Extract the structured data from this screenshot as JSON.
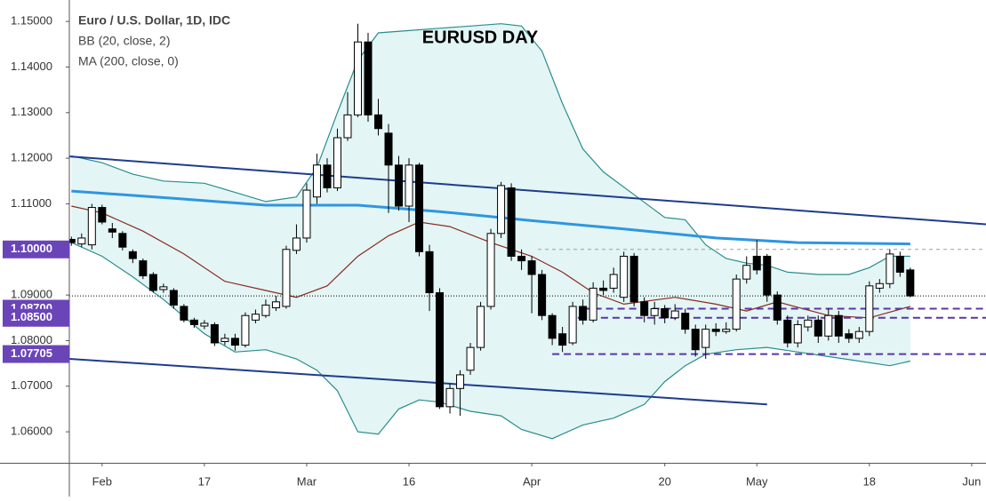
{
  "chart_data": {
    "type": "candlestick",
    "title": "EURUSD DAY",
    "symbol": "Euro / U.S. Dollar, 1D, IDC",
    "indicators": [
      "BB (20, close, 2)",
      "MA (200, close, 0)"
    ],
    "xlim": [
      -3.2,
      86.4
    ],
    "xticks": [
      {
        "value": 0,
        "label": "Feb"
      },
      {
        "value": 10,
        "label": "17"
      },
      {
        "value": 20,
        "label": "Mar"
      },
      {
        "value": 30,
        "label": "16"
      },
      {
        "value": 42,
        "label": "Apr"
      },
      {
        "value": 55,
        "label": "20"
      },
      {
        "value": 64,
        "label": "May"
      },
      {
        "value": 75,
        "label": "18"
      },
      {
        "value": 85,
        "label": "Jun"
      }
    ],
    "ylim": [
      1.0532,
      1.1547
    ],
    "yticks": [
      {
        "value": 1.15,
        "label": "1.15000"
      },
      {
        "value": 1.14,
        "label": "1.14000"
      },
      {
        "value": 1.13,
        "label": "1.13000"
      },
      {
        "value": 1.12,
        "label": "1.12000"
      },
      {
        "value": 1.11,
        "label": "1.11000"
      },
      {
        "value": 1.1,
        "label": "1.10000"
      },
      {
        "value": 1.09,
        "label": "1.09000"
      },
      {
        "value": 1.08,
        "label": "1.08000"
      },
      {
        "value": 1.07,
        "label": "1.07000"
      },
      {
        "value": 1.06,
        "label": "1.06000"
      }
    ],
    "up_color": "#ffffff",
    "down_color": "#000000",
    "x": [
      -3,
      -2,
      -1,
      0,
      1,
      2,
      3,
      4,
      5,
      6,
      7,
      8,
      9,
      10,
      11,
      12,
      13,
      14,
      15,
      16,
      17,
      18,
      19,
      20,
      21,
      22,
      23,
      24,
      25,
      26,
      27,
      28,
      29,
      30,
      31,
      32,
      33,
      34,
      35,
      36,
      37,
      38,
      39,
      40,
      41,
      42,
      43,
      44,
      45,
      46,
      47,
      48,
      49,
      50,
      51,
      52,
      53,
      54,
      55,
      56,
      57,
      58,
      59,
      60,
      61,
      62,
      63,
      64,
      65,
      66,
      67,
      68,
      69,
      70,
      71,
      72,
      73,
      74,
      75,
      76,
      77,
      78,
      79
    ],
    "open": [
      1.1022,
      1.1012,
      1.101,
      1.1092,
      1.1045,
      1.1035,
      1.0995,
      1.0975,
      1.0945,
      1.0912,
      1.091,
      1.0875,
      1.0845,
      1.0832,
      1.0835,
      1.0798,
      1.0805,
      1.079,
      1.0845,
      1.0855,
      1.0872,
      1.0875,
      1.0998,
      1.1025,
      1.1115,
      1.1185,
      1.1135,
      1.1245,
      1.1295,
      1.1455,
      1.1295,
      1.1255,
      1.1185,
      1.1095,
      1.1185,
      1.0995,
      1.0905,
      1.0655,
      1.0695,
      1.0735,
      1.0785,
      1.0875,
      1.1035,
      1.1135,
      1.0985,
      1.0975,
      1.0945,
      1.0855,
      1.0815,
      1.0795,
      1.0875,
      1.0845,
      1.0915,
      1.0915,
      1.0895,
      1.0985,
      1.0885,
      1.0855,
      1.087,
      1.085,
      1.086,
      1.0825,
      1.0785,
      1.0825,
      1.082,
      1.0825,
      1.0935,
      1.0985,
      1.0985,
      1.09,
      1.0845,
      1.0795,
      1.083,
      1.0845,
      1.081,
      1.0855,
      1.0815,
      1.0805,
      1.082,
      1.0915,
      1.0925,
      1.0985,
      1.0955
    ],
    "high": [
      1.1028,
      1.1035,
      1.11,
      1.1098,
      1.1058,
      1.104,
      1.1,
      1.098,
      1.095,
      1.0925,
      1.0915,
      1.088,
      1.085,
      1.0845,
      1.084,
      1.0815,
      1.0815,
      1.0862,
      1.0868,
      1.089,
      1.0898,
      1.1008,
      1.1055,
      1.1145,
      1.121,
      1.12,
      1.1265,
      1.1345,
      1.1495,
      1.1475,
      1.133,
      1.1275,
      1.1205,
      1.12,
      1.119,
      1.101,
      1.0915,
      1.0705,
      1.0735,
      1.0795,
      1.0885,
      1.1045,
      1.1148,
      1.1145,
      1.1,
      1.0985,
      1.0955,
      1.086,
      1.083,
      1.0885,
      1.089,
      1.0928,
      1.0932,
      1.096,
      1.0995,
      1.0992,
      1.0895,
      1.0885,
      1.0878,
      1.088,
      1.087,
      1.0835,
      1.0835,
      1.0838,
      1.084,
      1.0945,
      1.0985,
      1.102,
      1.099,
      1.0908,
      1.0855,
      1.0845,
      1.0855,
      1.0855,
      1.087,
      1.0865,
      1.0825,
      1.083,
      1.093,
      1.0935,
      1.1,
      1.0995,
      1.096
    ],
    "low": [
      1.1008,
      1.1005,
      1.1,
      1.1055,
      1.1025,
      1.0998,
      1.097,
      1.0935,
      1.0905,
      1.0905,
      1.087,
      1.084,
      1.0828,
      1.0825,
      1.0788,
      1.079,
      1.0778,
      1.0785,
      1.0838,
      1.085,
      1.0865,
      1.087,
      1.099,
      1.1015,
      1.11,
      1.1125,
      1.1128,
      1.1238,
      1.129,
      1.128,
      1.125,
      1.108,
      1.1085,
      1.106,
      1.0985,
      1.0865,
      1.065,
      1.064,
      1.0635,
      1.0725,
      1.0778,
      1.0868,
      1.1025,
      1.0975,
      1.0955,
      1.086,
      1.0845,
      1.079,
      1.0775,
      1.079,
      1.0835,
      1.084,
      1.09,
      1.0905,
      1.0885,
      1.0875,
      1.084,
      1.0835,
      1.0838,
      1.0845,
      1.0815,
      1.0765,
      1.076,
      1.081,
      1.0815,
      1.082,
      1.0925,
      1.0945,
      1.0885,
      1.0835,
      1.0785,
      1.0785,
      1.082,
      1.0795,
      1.08,
      1.0795,
      1.0795,
      1.0795,
      1.081,
      1.0905,
      1.0915,
      1.094,
      1.0895
    ],
    "close": [
      1.1015,
      1.1025,
      1.1092,
      1.106,
      1.1038,
      1.1005,
      1.098,
      1.0942,
      1.091,
      1.0918,
      1.0878,
      1.0845,
      1.0835,
      1.0838,
      1.0795,
      1.0805,
      1.079,
      1.0855,
      1.0858,
      1.0878,
      1.0885,
      1.1,
      1.1025,
      1.113,
      1.1185,
      1.1135,
      1.1245,
      1.1295,
      1.1455,
      1.1295,
      1.1265,
      1.1185,
      1.1095,
      1.1185,
      1.0995,
      1.0905,
      1.0655,
      1.0695,
      1.0725,
      1.0785,
      1.0875,
      1.1035,
      1.114,
      1.0985,
      1.0975,
      1.0945,
      1.0855,
      1.0805,
      1.079,
      1.0875,
      1.0845,
      1.0915,
      1.091,
      1.0945,
      1.0985,
      1.0885,
      1.0855,
      1.087,
      1.085,
      1.0865,
      1.0825,
      1.078,
      1.0825,
      1.082,
      1.0825,
      1.0935,
      1.0965,
      1.0955,
      1.09,
      1.0845,
      1.0795,
      1.0835,
      1.0845,
      1.081,
      1.0855,
      1.081,
      1.0805,
      1.082,
      1.092,
      1.0925,
      1.099,
      1.095,
      1.0898
    ],
    "band_fill": "#e3f5f5",
    "bb_upper": {
      "color": "#2a8c8c",
      "x": [
        -3,
        0,
        3,
        6,
        10,
        13,
        16,
        19,
        21,
        23,
        25,
        27,
        30,
        33,
        36,
        39,
        41,
        43,
        45,
        47,
        49,
        52,
        55,
        57,
        59,
        61,
        63,
        65,
        67,
        70,
        73,
        75,
        77,
        79
      ],
      "values": [
        1.1205,
        1.119,
        1.1165,
        1.115,
        1.1145,
        1.1125,
        1.1105,
        1.1115,
        1.118,
        1.13,
        1.1415,
        1.1475,
        1.148,
        1.1485,
        1.149,
        1.1495,
        1.149,
        1.1435,
        1.132,
        1.122,
        1.117,
        1.112,
        1.107,
        1.1065,
        1.101,
        1.098,
        1.097,
        1.0965,
        1.095,
        1.0945,
        1.0945,
        1.096,
        1.0985,
        1.0985
      ]
    },
    "bb_lower": {
      "color": "#2a8c8c",
      "x": [
        -3,
        0,
        3,
        6,
        10,
        13,
        16,
        19,
        21,
        23,
        25,
        27,
        29,
        31,
        33,
        36,
        39,
        41,
        44,
        47,
        50,
        53,
        55,
        57,
        59,
        62,
        65,
        68,
        71,
        74,
        77,
        79
      ],
      "values": [
        1.1015,
        1.0985,
        1.094,
        1.089,
        1.0815,
        1.0775,
        1.078,
        1.076,
        1.0735,
        1.069,
        1.06,
        1.0595,
        1.065,
        1.067,
        1.0665,
        1.0645,
        1.0635,
        1.0605,
        1.0585,
        1.0615,
        1.063,
        1.066,
        1.071,
        1.0745,
        1.077,
        1.078,
        1.0785,
        1.0775,
        1.0765,
        1.0755,
        1.0745,
        1.0755
      ]
    },
    "bb_middle": {
      "color": "#8b2a1e",
      "x": [
        -3,
        0,
        4,
        8,
        12,
        16,
        19,
        22,
        25,
        28,
        31,
        34,
        38,
        42,
        45,
        48,
        51,
        56,
        60,
        63,
        66,
        71,
        75,
        79
      ],
      "values": [
        1.1095,
        1.108,
        1.104,
        1.099,
        1.093,
        1.091,
        1.0895,
        1.092,
        1.0985,
        1.103,
        1.106,
        1.105,
        1.1015,
        1.0985,
        1.095,
        1.0905,
        1.088,
        1.0895,
        1.088,
        1.0865,
        1.0885,
        1.0855,
        1.085,
        1.0875
      ]
    },
    "ma200": {
      "color": "#2f96e0",
      "x": [
        -3,
        7,
        16,
        25,
        33,
        42,
        51,
        60,
        68,
        79
      ],
      "values": [
        1.1128,
        1.1112,
        1.1097,
        1.1097,
        1.1083,
        1.1063,
        1.1045,
        1.1025,
        1.1015,
        1.1012
      ]
    },
    "trendlines": [
      {
        "color": "#1e3c8c",
        "x": [
          -3.2,
          86.4
        ],
        "values": [
          1.1204,
          1.1055
        ]
      },
      {
        "color": "#1e3c8c",
        "x": [
          -3.2,
          65
        ],
        "values": [
          1.076,
          1.066
        ]
      }
    ],
    "levels": [
      {
        "value": 1.1,
        "label": "1.10000",
        "color": "#9e9e9e",
        "x_start": 42.6
      },
      {
        "value": 1.087,
        "label": "1.08700",
        "color": "#5a35a8",
        "x_start": 47
      },
      {
        "value": 1.085,
        "label": "1.08500",
        "color": "#5a35a8",
        "x_start": 46.5
      },
      {
        "value": 1.07705,
        "label": "1.07705",
        "color": "#5a35a8",
        "x_start": 44
      }
    ],
    "level_box_color": "#6a45b8",
    "last_price": 1.0898
  }
}
